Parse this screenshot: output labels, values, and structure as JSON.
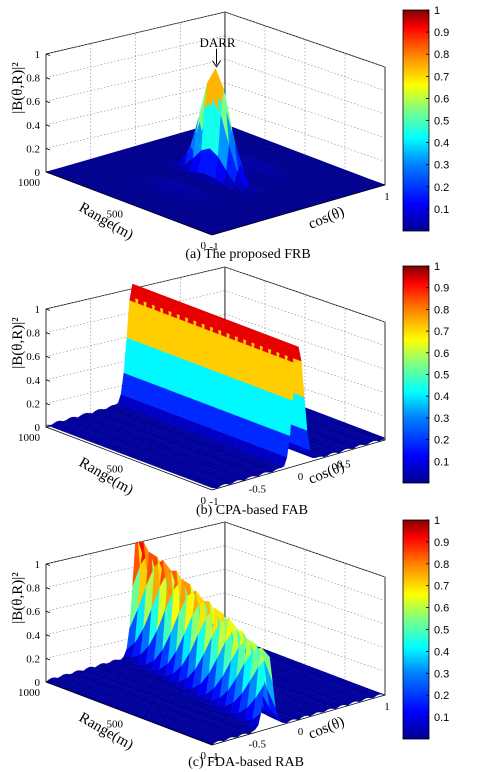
{
  "colors": {
    "colormap": [
      "#00008f",
      "#0000ff",
      "#0080ff",
      "#00ffff",
      "#80ff80",
      "#ffff00",
      "#ff8000",
      "#ff0000",
      "#800000"
    ],
    "grid": "#888888",
    "floor": "#1a1aa8"
  },
  "chart_data": [
    {
      "type": "surface3d",
      "caption": "(a) The proposed FRB",
      "zlabel": "|B(θ,R)|²",
      "ylabel": "Range(m)",
      "xlabel": "cos(θ)",
      "annotation": "DARR",
      "z_ticks": [
        "0",
        "0.2",
        "0.4",
        "0.6",
        "0.8",
        "1"
      ],
      "x_ticks": [
        "-1",
        "1"
      ],
      "y_ticks": [
        "0",
        "500",
        "1000"
      ],
      "zlim": [
        0,
        1
      ],
      "shape": "peak",
      "peak": {
        "cos_theta": 0.0,
        "range_m": 500,
        "value": 0.93
      },
      "colorbar_ticks": [
        "0.1",
        "0.2",
        "0.3",
        "0.4",
        "0.5",
        "0.6",
        "0.7",
        "0.8",
        "0.9",
        "1"
      ]
    },
    {
      "type": "surface3d",
      "caption": "(b) CPA-based FAB",
      "zlabel": "|B(θ,R)|²",
      "ylabel": "Range(m)",
      "xlabel": "cos(θ)",
      "z_ticks": [
        "0",
        "0.2",
        "0.4",
        "0.6",
        "0.8",
        "1"
      ],
      "x_ticks": [
        "-1",
        "-0.5",
        "0",
        "0.5"
      ],
      "y_ticks": [
        "0",
        "500",
        "1000"
      ],
      "zlim": [
        0,
        1
      ],
      "shape": "ridge_along_range",
      "ridge": {
        "cos_theta": 0.0,
        "value": 1.0
      },
      "colorbar_ticks": [
        "0.1",
        "0.2",
        "0.3",
        "0.4",
        "0.5",
        "0.6",
        "0.7",
        "0.8",
        "0.9",
        "1"
      ]
    },
    {
      "type": "surface3d",
      "caption": "(c) FDA-based RAB",
      "zlabel": "|B(θ,R)|²",
      "ylabel": "Range(m)",
      "xlabel": "cos(θ)",
      "z_ticks": [
        "0",
        "0.2",
        "0.4",
        "0.6",
        "0.8",
        "1"
      ],
      "x_ticks": [
        "-1",
        "-0.5",
        "0",
        "1"
      ],
      "y_ticks": [
        "0",
        "500",
        "1000"
      ],
      "zlim": [
        0,
        1
      ],
      "shape": "diagonal_ridge",
      "ridge": {
        "cos_theta_at_range_0": -0.35,
        "cos_theta_at_range_1000": 0.05,
        "value": 1.0
      },
      "colorbar_ticks": [
        "0.1",
        "0.2",
        "0.3",
        "0.4",
        "0.5",
        "0.6",
        "0.7",
        "0.8",
        "0.9",
        "1"
      ]
    }
  ]
}
